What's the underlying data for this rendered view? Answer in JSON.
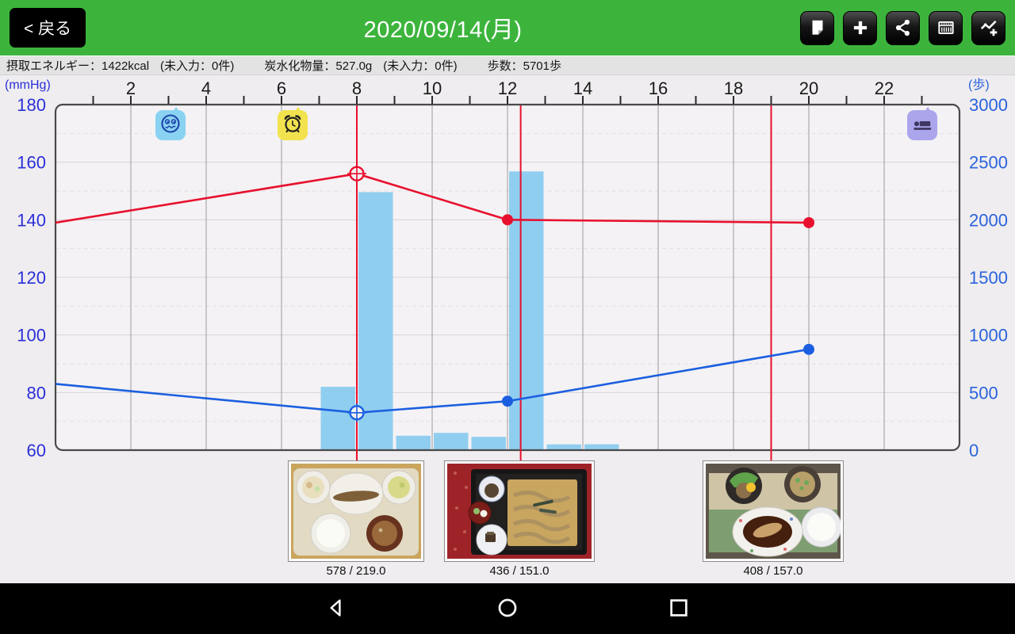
{
  "header": {
    "back_label": "< 戻る",
    "title": "2020/09/14(月)"
  },
  "toolbar": {
    "icons": [
      "memo-icon",
      "add-icon",
      "share-icon",
      "table-icon",
      "add-graph-icon"
    ]
  },
  "stats": {
    "energy": "摂取エネルギー：1422kcal",
    "energy_note": "(未入力：0件)",
    "carbs": "炭水化物量：527.0g",
    "carbs_note": "(未入力：0件)",
    "steps": "歩数：5701歩"
  },
  "events": [
    {
      "icon": "mood-face-icon",
      "hour": 3.05
    },
    {
      "icon": "alarm-clock-icon",
      "hour": 6.3
    },
    {
      "icon": "sleep-icon",
      "hour": 23.0
    }
  ],
  "meals": [
    {
      "caption": "578 / 219.0",
      "hour": 8.0
    },
    {
      "caption": "436 / 151.0",
      "hour": 12.35
    },
    {
      "caption": "408 / 157.0",
      "hour": 19.0
    }
  ],
  "chart_data": {
    "type": "mixed",
    "x_axis": {
      "unit": "hour",
      "min": 0,
      "max": 24,
      "tick_every": 1,
      "labels": [
        2,
        4,
        6,
        8,
        10,
        12,
        14,
        16,
        18,
        20,
        22
      ]
    },
    "y_left": {
      "unit": "(mmHg)",
      "min": 60,
      "max": 180,
      "labels": [
        180,
        160,
        140,
        120,
        100,
        80,
        60
      ],
      "color": "#2B2FD8"
    },
    "y_right": {
      "unit": "(歩)",
      "min": 0,
      "max": 3000,
      "labels": [
        3000,
        2500,
        2000,
        1500,
        1000,
        500,
        0
      ],
      "color": "#2B63DC"
    },
    "grid": {
      "h_solid_every": 20,
      "h_dashed_every": 20,
      "v_solid_every_hours": 2
    },
    "meal_lines": [
      {
        "hour": 8.0
      },
      {
        "hour": 12.35
      },
      {
        "hour": 19.0
      }
    ],
    "meal_line_color": "#E8102E",
    "series": [
      {
        "name": "systolic",
        "type": "line",
        "axis": "left",
        "color": "#E8102E",
        "edge_entry": {
          "hour": 0,
          "value": 139
        },
        "points": [
          {
            "hour": 8,
            "value": 156,
            "marker": "ring"
          },
          {
            "hour": 12,
            "value": 140,
            "marker": "dot"
          },
          {
            "hour": 20,
            "value": 139,
            "marker": "dot"
          }
        ]
      },
      {
        "name": "diastolic",
        "type": "line",
        "axis": "left",
        "color": "#1B5FE0",
        "edge_entry": {
          "hour": 0,
          "value": 83
        },
        "points": [
          {
            "hour": 8,
            "value": 73,
            "marker": "ring"
          },
          {
            "hour": 12,
            "value": 77,
            "marker": "dot"
          },
          {
            "hour": 20,
            "value": 95,
            "marker": "dot"
          }
        ]
      },
      {
        "name": "steps",
        "type": "bar",
        "axis": "right",
        "color": "#90CEF0",
        "bars": [
          {
            "hour": 7,
            "value": 550
          },
          {
            "hour": 8,
            "value": 2240
          },
          {
            "hour": 9,
            "value": 125
          },
          {
            "hour": 10,
            "value": 150
          },
          {
            "hour": 11,
            "value": 115
          },
          {
            "hour": 12,
            "value": 2420
          },
          {
            "hour": 13,
            "value": 50
          },
          {
            "hour": 14,
            "value": 51
          }
        ]
      }
    ]
  }
}
